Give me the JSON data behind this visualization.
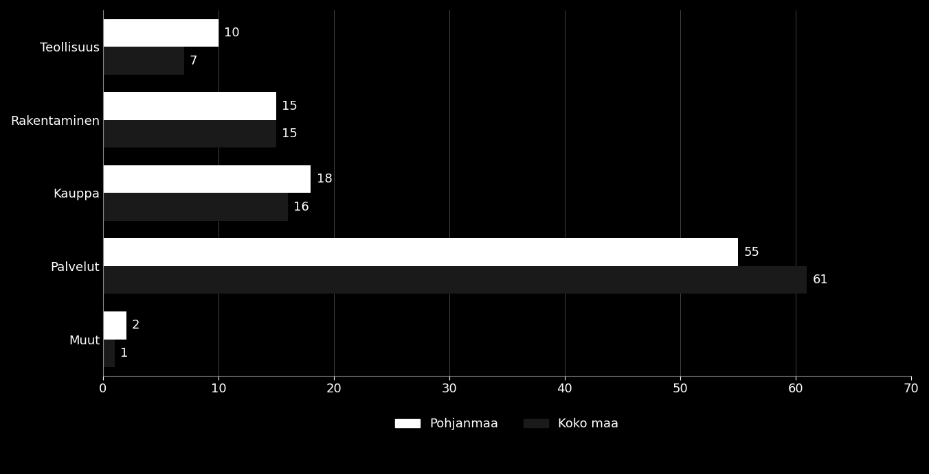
{
  "categories": [
    "Teollisuus",
    "Rakentaminen",
    "Kauppa",
    "Palvelut",
    "Muut"
  ],
  "pohjanmaa": [
    10,
    15,
    18,
    55,
    2
  ],
  "koko_maa": [
    7,
    15,
    16,
    61,
    1
  ],
  "pohjanmaa_color": "#ffffff",
  "koko_maa_color": "#1a1a1a",
  "background_color": "#000000",
  "text_color": "#ffffff",
  "bar_height": 0.38,
  "xlim": [
    0,
    70
  ],
  "xticks": [
    0,
    10,
    20,
    30,
    40,
    50,
    60,
    70
  ],
  "legend_pohjanmaa": "Pohjanmaa",
  "legend_koko_maa": "Koko maa",
  "label_fontsize": 13,
  "tick_fontsize": 13,
  "legend_fontsize": 13,
  "value_fontsize": 13
}
